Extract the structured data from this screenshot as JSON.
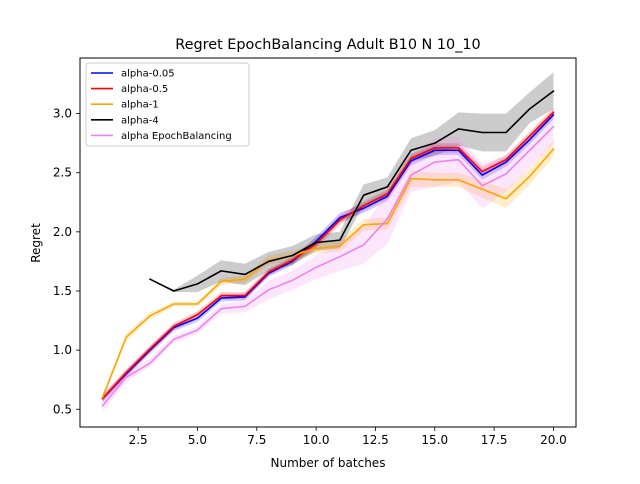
{
  "chart_data": {
    "type": "line",
    "title": "Regret EpochBalancing Adult B10 N 10_10",
    "xlabel": "Number of batches",
    "ylabel": "Regret",
    "xlim": [
      0.05,
      20.95
    ],
    "ylim": [
      0.35,
      3.47
    ],
    "xticks": [
      2.5,
      5.0,
      7.5,
      10.0,
      12.5,
      15.0,
      17.5,
      20.0
    ],
    "xtick_labels": [
      "2.5",
      "5.0",
      "7.5",
      "10.0",
      "12.5",
      "15.0",
      "17.5",
      "20.0"
    ],
    "yticks": [
      0.5,
      1.0,
      1.5,
      2.0,
      2.5,
      3.0
    ],
    "ytick_labels": [
      "0.5",
      "1.0",
      "1.5",
      "2.0",
      "2.5",
      "3.0"
    ],
    "legend_position": "top-left",
    "grid": false,
    "x": [
      1,
      2,
      3,
      4,
      5,
      6,
      7,
      8,
      9,
      10,
      11,
      12,
      13,
      14,
      15,
      16,
      17,
      18,
      19,
      20
    ],
    "series": [
      {
        "name": "alpha-0.05",
        "color": "#0000ff",
        "values": [
          0.59,
          0.8,
          1.0,
          1.19,
          1.27,
          1.44,
          1.45,
          1.65,
          1.75,
          1.92,
          2.12,
          2.2,
          2.3,
          2.6,
          2.69,
          2.69,
          2.48,
          2.59,
          2.78,
          2.99
        ],
        "lower": [
          0.56,
          0.77,
          0.97,
          1.16,
          1.24,
          1.41,
          1.42,
          1.62,
          1.72,
          1.88,
          2.08,
          2.16,
          2.26,
          2.56,
          2.65,
          2.65,
          2.44,
          2.55,
          2.74,
          2.95
        ],
        "upper": [
          0.62,
          0.83,
          1.03,
          1.22,
          1.3,
          1.47,
          1.48,
          1.68,
          1.78,
          1.96,
          2.16,
          2.24,
          2.34,
          2.64,
          2.73,
          2.73,
          2.52,
          2.63,
          2.82,
          3.03
        ]
      },
      {
        "name": "alpha-0.5",
        "color": "#ff0000",
        "values": [
          0.59,
          0.81,
          1.01,
          1.2,
          1.3,
          1.46,
          1.46,
          1.66,
          1.76,
          1.9,
          2.1,
          2.22,
          2.32,
          2.62,
          2.71,
          2.71,
          2.51,
          2.61,
          2.81,
          3.01
        ],
        "lower": [
          0.56,
          0.78,
          0.98,
          1.17,
          1.27,
          1.43,
          1.43,
          1.63,
          1.73,
          1.86,
          2.06,
          2.18,
          2.28,
          2.58,
          2.67,
          2.67,
          2.47,
          2.57,
          2.77,
          2.97
        ],
        "upper": [
          0.62,
          0.84,
          1.04,
          1.23,
          1.33,
          1.49,
          1.49,
          1.69,
          1.79,
          1.94,
          2.14,
          2.26,
          2.36,
          2.66,
          2.75,
          2.75,
          2.55,
          2.65,
          2.85,
          3.05
        ]
      },
      {
        "name": "alpha-1",
        "color": "#ffa500",
        "values": [
          0.6,
          1.11,
          1.29,
          1.39,
          1.39,
          1.58,
          1.6,
          1.76,
          1.8,
          1.86,
          1.88,
          2.06,
          2.07,
          2.45,
          2.44,
          2.44,
          2.36,
          2.28,
          2.47,
          2.7
        ],
        "lower": [
          0.58,
          1.08,
          1.26,
          1.37,
          1.37,
          1.55,
          1.57,
          1.72,
          1.76,
          1.82,
          1.83,
          2.01,
          2.02,
          2.38,
          2.38,
          2.38,
          2.29,
          2.2,
          2.4,
          2.63
        ],
        "upper": [
          0.62,
          1.14,
          1.32,
          1.41,
          1.41,
          1.61,
          1.63,
          1.8,
          1.84,
          1.9,
          1.93,
          2.11,
          2.12,
          2.52,
          2.5,
          2.5,
          2.43,
          2.36,
          2.54,
          2.77
        ]
      },
      {
        "name": "alpha-4",
        "color": "#000000",
        "values": [
          null,
          null,
          1.6,
          1.5,
          1.56,
          1.67,
          1.64,
          1.75,
          1.8,
          1.91,
          1.93,
          2.31,
          2.38,
          2.69,
          2.75,
          2.87,
          2.84,
          2.84,
          3.04,
          3.19
        ],
        "lower": [
          null,
          null,
          1.6,
          1.49,
          1.49,
          1.58,
          1.55,
          1.67,
          1.72,
          1.84,
          1.86,
          2.23,
          2.3,
          2.6,
          2.64,
          2.73,
          2.68,
          2.68,
          2.92,
          3.04
        ],
        "upper": [
          null,
          null,
          1.6,
          1.51,
          1.63,
          1.76,
          1.73,
          1.83,
          1.88,
          1.98,
          2.0,
          2.4,
          2.46,
          2.79,
          2.86,
          3.01,
          3.0,
          3.0,
          3.18,
          3.35
        ]
      },
      {
        "name": "alpha EpochBalancing",
        "color": "#ee82ee",
        "values": [
          0.53,
          0.77,
          0.89,
          1.09,
          1.17,
          1.35,
          1.37,
          1.51,
          1.59,
          1.7,
          1.79,
          1.89,
          2.11,
          2.48,
          2.59,
          2.61,
          2.39,
          2.49,
          2.69,
          2.89
        ],
        "lower": [
          0.48,
          0.73,
          0.86,
          1.06,
          1.14,
          1.31,
          1.32,
          1.43,
          1.51,
          1.6,
          1.67,
          1.73,
          1.9,
          2.34,
          2.38,
          2.42,
          2.2,
          2.34,
          2.55,
          2.75
        ],
        "upper": [
          0.58,
          0.81,
          0.93,
          1.12,
          1.2,
          1.39,
          1.42,
          1.59,
          1.67,
          1.8,
          1.91,
          2.05,
          2.32,
          2.62,
          2.8,
          2.8,
          2.58,
          2.64,
          2.83,
          3.03
        ]
      }
    ]
  }
}
